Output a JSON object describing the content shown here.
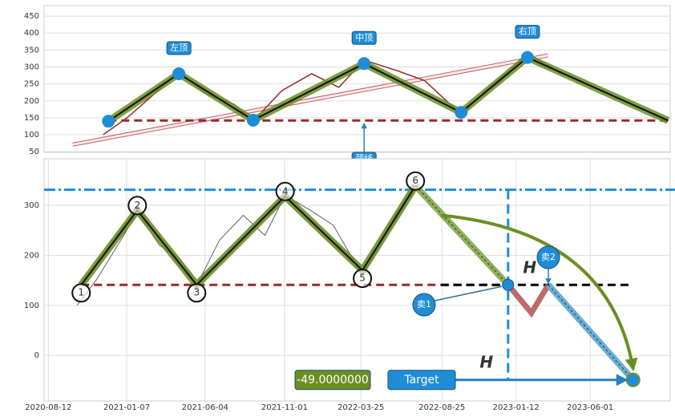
{
  "chart_data": [
    {
      "type": "line",
      "xlim": [
        "2020-07-08",
        "2023-02-06"
      ],
      "ylim": [
        48,
        481
      ],
      "yticks": [
        50,
        100,
        150,
        200,
        250,
        300,
        350,
        400,
        450
      ],
      "grid": true,
      "series": [
        {
          "color": "#9b2a2a",
          "x": [
            "2020-10-05",
            "2020-11-10",
            "2020-12-15",
            "2021-01-27",
            "2021-03-10",
            "2021-04-20",
            "2021-05-19",
            "2021-07-01",
            "2021-08-15",
            "2021-09-25",
            "2021-11-02",
            "2021-12-20",
            "2022-02-01",
            "2022-03-28",
            "2022-05-10",
            "2022-06-15",
            "2022-07-06",
            "2022-08-10",
            "2022-08-25"
          ],
          "values": [
            100,
            150,
            210,
            285,
            220,
            190,
            140,
            230,
            280,
            240,
            320,
            290,
            260,
            160,
            240,
            300,
            340,
            300,
            280
          ]
        },
        {
          "color": "#6b8e23",
          "x": [
            "2020-10-13",
            "2021-01-27",
            "2021-05-19",
            "2021-11-02",
            "2022-03-28",
            "2022-07-06",
            "2023-02-03"
          ],
          "values": [
            140,
            280,
            143,
            310,
            166,
            328,
            142
          ]
        }
      ],
      "neckline": 142,
      "neck_color": "#9b2a2a",
      "trendline": {
        "x": [
          "2020-08-20",
          "2022-08-06"
        ],
        "values": [
          71,
          334
        ]
      },
      "labels": [
        "左顶",
        "中顶",
        "右顶"
      ],
      "neck_label": "颈线"
    },
    {
      "type": "line",
      "xlim": [
        "2020-08-04",
        "2023-10-30"
      ],
      "ylim": [
        -91,
        393
      ],
      "yticks": [
        0,
        100,
        200,
        300
      ],
      "xticks": [
        "2020-08-12",
        "2021-01-07",
        "2021-06-04",
        "2021-11-01",
        "2022-03-25",
        "2022-08-25",
        "2023-01-12",
        "2023-06-01"
      ],
      "grid": true,
      "series": [
        {
          "color": "#5a6270",
          "x": [
            "2020-10-05",
            "2020-11-10",
            "2020-12-15",
            "2021-01-27",
            "2021-03-10",
            "2021-04-20",
            "2021-05-19",
            "2021-07-01",
            "2021-08-15",
            "2021-09-25",
            "2021-11-02",
            "2021-12-20",
            "2022-02-01",
            "2022-03-28",
            "2022-05-10",
            "2022-06-15",
            "2022-07-06",
            "2022-08-10",
            "2022-08-23"
          ],
          "values": [
            100,
            150,
            210,
            285,
            220,
            190,
            140,
            230,
            280,
            240,
            320,
            290,
            260,
            160,
            240,
            300,
            340,
            300,
            280
          ]
        },
        {
          "color": "#6b8e23",
          "x": [
            "2020-10-13",
            "2021-01-27",
            "2021-05-19",
            "2021-11-02",
            "2022-03-28",
            "2022-07-06"
          ],
          "values": [
            141,
            290,
            141,
            318,
            170,
            339
          ],
          "point_labels": [
            "1",
            "2",
            "3",
            "4",
            "5",
            "6"
          ]
        }
      ],
      "neckline": 141,
      "top_line": 331,
      "sell": [
        {
          "label": "卖1",
          "x": "2022-12-28",
          "value": 141
        },
        {
          "label": "卖2",
          "x": "2023-03-14",
          "value": 141
        }
      ],
      "dip": {
        "x": "2023-02-10",
        "value": 85
      },
      "h_label": "H",
      "target": {
        "x": "2023-08-21",
        "value": -49,
        "value_label": "-49.0000000",
        "label": "Target"
      }
    }
  ]
}
